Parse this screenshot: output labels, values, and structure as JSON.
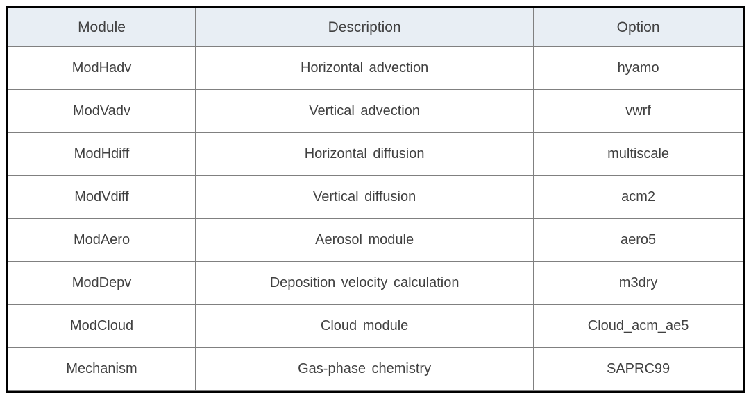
{
  "table": {
    "type": "table",
    "columns": [
      {
        "label": "Module",
        "width_pct": 25.5
      },
      {
        "label": "Description",
        "width_pct": 46.0
      },
      {
        "label": "Option",
        "width_pct": 28.5
      }
    ],
    "rows": [
      {
        "module": "ModHadv",
        "description": "Horizontal advection",
        "option": "hyamo"
      },
      {
        "module": "ModVadv",
        "description": "Vertical advection",
        "option": "vwrf"
      },
      {
        "module": "ModHdiff",
        "description": "Horizontal diffusion",
        "option": "multiscale"
      },
      {
        "module": "ModVdiff",
        "description": "Vertical diffusion",
        "option": "acm2"
      },
      {
        "module": "ModAero",
        "description": "Aerosol module",
        "option": "aero5"
      },
      {
        "module": "ModDepv",
        "description": "Deposition velocity calculation",
        "option": "m3dry"
      },
      {
        "module": "ModCloud",
        "description": "Cloud module",
        "option": "Cloud_acm_ae5"
      },
      {
        "module": "Mechanism",
        "description": "Gas-phase chemistry",
        "option": "SAPRC99"
      }
    ],
    "background_color": "#ffffff",
    "header_background_color": "#e8eef4",
    "border_color_outer": "#000000",
    "border_color_inner": "#808080",
    "text_color": "#404040",
    "header_fontsize": 21,
    "cell_fontsize": 20,
    "outer_border_width": 3,
    "header_row_height": 56,
    "body_row_height": 62
  }
}
